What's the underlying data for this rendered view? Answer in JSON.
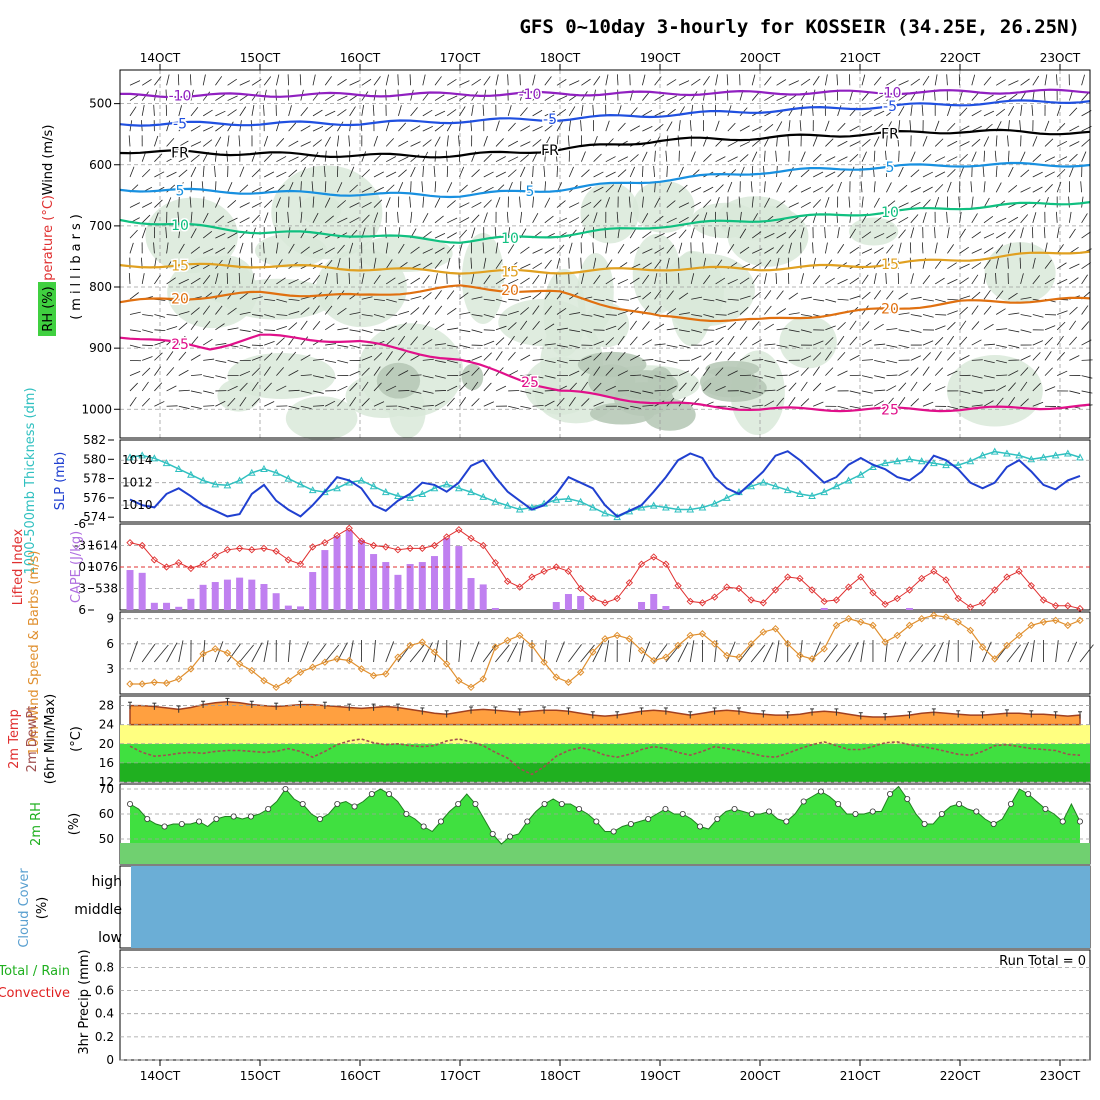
{
  "chart_data": {
    "type": "meteogram",
    "title": "GFS 0~10day 3-hourly for KOSSEIR (34.25E, 26.25N)",
    "dates": [
      "14OCT",
      "15OCT",
      "16OCT",
      "17OCT",
      "18OCT",
      "19OCT",
      "20OCT",
      "21OCT",
      "22OCT",
      "23OCT"
    ],
    "time_range_days": [
      13.6,
      23.3
    ],
    "colors": {
      "grid": "#9e9e9e",
      "rh_fill": "#d9e9d9",
      "precip": "#00e000",
      "convective": "#e02020",
      "cloud": "#6baed6",
      "cape": "#c080f0",
      "li": "#e03030",
      "slp": "#2040d0",
      "thick": "#30c0c0",
      "wind": "#e09030",
      "temp_fill": "#ffa040",
      "dew": "#a05050",
      "rh2m": "#40e040"
    },
    "upper": {
      "ylabel_wind": "Wind (m/s)",
      "ylabel_temp": "Temperature (°C)",
      "ylabel_rh": "RH (%)",
      "ylabel_units": "(millibars)",
      "y_ticks": [
        500,
        600,
        700,
        800,
        900,
        1000
      ],
      "ylim_hpa": [
        445,
        1047
      ],
      "isotherms": [
        {
          "label": "-10",
          "color": "#9020c0",
          "base": 488,
          "amp": 4,
          "t": [
            13.6,
            23.3
          ],
          "p": [
            487,
            480
          ]
        },
        {
          "label": "-5",
          "color": "#2050e0",
          "base": 533,
          "t": [
            13.6,
            16,
            18,
            20,
            22,
            23.3
          ],
          "p": [
            533,
            532,
            525,
            512,
            500,
            495
          ]
        },
        {
          "label": "FR",
          "color": "#000000",
          "t": [
            13.6,
            15,
            16,
            17,
            18,
            19,
            20,
            21,
            22,
            23.3
          ],
          "p": [
            578,
            582,
            585,
            585,
            575,
            560,
            556,
            550,
            545,
            548
          ]
        },
        {
          "label": "5",
          "color": "#1890e0",
          "t": [
            13.6,
            15,
            16,
            17,
            18,
            19,
            20,
            21,
            22,
            23.3
          ],
          "p": [
            640,
            645,
            648,
            650,
            640,
            625,
            612,
            605,
            600,
            600
          ]
        },
        {
          "label": "10",
          "color": "#10c080",
          "t": [
            13.6,
            15,
            16,
            17,
            18,
            19,
            20,
            21,
            22,
            23.3
          ],
          "p": [
            690,
            710,
            715,
            725,
            715,
            700,
            690,
            680,
            670,
            660
          ]
        },
        {
          "label": "15",
          "color": "#e0a020",
          "t": [
            13.6,
            15,
            16,
            17,
            18,
            19,
            20,
            21,
            22,
            23.3
          ],
          "p": [
            765,
            765,
            770,
            775,
            775,
            770,
            770,
            765,
            755,
            740
          ]
        },
        {
          "label": "20",
          "color": "#e07010",
          "t": [
            13.6,
            15,
            16,
            17,
            18,
            19,
            20,
            21,
            22,
            23.3
          ],
          "p": [
            825,
            810,
            815,
            800,
            810,
            850,
            855,
            840,
            825,
            820
          ]
        },
        {
          "label": "25",
          "color": "#e0108a",
          "t": [
            13.6,
            14.5,
            15,
            16,
            17,
            18,
            19,
            20,
            21,
            22,
            23.3
          ],
          "p": [
            880,
            900,
            880,
            890,
            920,
            970,
            990,
            1000,
            1000,
            1000,
            995
          ]
        }
      ]
    },
    "pressure": {
      "ylabel_slp": "SLP (mb)",
      "ylabel_thick": "1000-500mb Thickness (dm)",
      "thick_ticks": [
        574,
        576,
        578,
        580,
        582
      ],
      "slp_ticks": [
        1010,
        1012,
        1014
      ],
      "slp_ylim": [
        1008.5,
        1015.8
      ],
      "thick_ylim": [
        573.5,
        582
      ],
      "slp": [
        1010.5,
        1010.0,
        1009.8,
        1011.0,
        1011.5,
        1010.8,
        1010.0,
        1009.5,
        1009.0,
        1009.2,
        1011.0,
        1011.8,
        1010.4,
        1009.6,
        1009.0,
        1010.0,
        1011.2,
        1012.5,
        1012.2,
        1011.5,
        1010.0,
        1009.5,
        1010.4,
        1011.0,
        1012.0,
        1011.8,
        1011.2,
        1012.0,
        1013.5,
        1014.0,
        1012.5,
        1011.2,
        1010.4,
        1009.6,
        1010.0,
        1011.0,
        1012.5,
        1012.0,
        1011.5,
        1010.0,
        1009.0,
        1009.5,
        1010.0,
        1011.2,
        1012.5,
        1014.0,
        1014.6,
        1014.2,
        1012.5,
        1011.5,
        1011.0,
        1012.0,
        1013.0,
        1014.4,
        1014.8,
        1014.0,
        1013.0,
        1012.0,
        1012.5,
        1013.6,
        1014.2,
        1013.6,
        1013.2,
        1012.5,
        1012.2,
        1013.0,
        1014.4,
        1014.0,
        1013.2,
        1012.0,
        1011.5,
        1012.0,
        1013.4,
        1014.0,
        1013.0,
        1011.8,
        1011.4,
        1012.2,
        1012.6
      ],
      "thick": [
        580.2,
        580.4,
        580.1,
        579.6,
        579.0,
        578.4,
        577.8,
        577.4,
        577.3,
        577.8,
        578.6,
        579.0,
        578.6,
        578.0,
        577.4,
        576.8,
        576.6,
        577.0,
        577.6,
        577.8,
        577.2,
        576.6,
        576.2,
        576.0,
        576.4,
        577.0,
        577.4,
        577.0,
        576.6,
        576.1,
        575.6,
        575.2,
        574.8,
        575.0,
        575.4,
        575.8,
        575.9,
        575.6,
        575.0,
        574.4,
        574.0,
        574.6,
        575.0,
        575.2,
        575.0,
        574.8,
        574.8,
        575.0,
        575.4,
        576.0,
        576.6,
        577.2,
        577.6,
        577.2,
        576.8,
        576.4,
        576.2,
        576.6,
        577.2,
        577.8,
        578.4,
        579.2,
        579.6,
        579.8,
        580.0,
        579.8,
        579.6,
        579.4,
        579.4,
        579.8,
        580.4,
        580.8,
        580.6,
        580.4,
        580.0,
        580.2,
        580.4,
        580.6,
        580.2
      ]
    },
    "instability": {
      "ylabel_li": "Lifted Index",
      "ylabel_cape": "CAPE (J/kg)",
      "li_ticks": [
        "-6",
        "-3",
        "0",
        "3",
        "6"
      ],
      "cape_ticks": [
        538,
        1076,
        1614
      ],
      "li_ylim": [
        -6,
        6
      ],
      "cape_ylim": [
        0,
        2152
      ],
      "li": [
        -3.4,
        -3.0,
        -1.0,
        0.0,
        -0.6,
        0.2,
        -0.4,
        -1.6,
        -2.4,
        -2.6,
        -2.4,
        -2.6,
        -2.2,
        -1.0,
        -0.4,
        -2.8,
        -3.4,
        -4.4,
        -5.4,
        -3.6,
        -3.0,
        -2.8,
        -2.4,
        -2.6,
        -2.6,
        -3.0,
        -4.2,
        -5.2,
        -4.0,
        -3.0,
        -0.6,
        2.0,
        2.8,
        1.4,
        0.6,
        0.0,
        0.6,
        3.0,
        4.4,
        5.0,
        4.4,
        2.2,
        -0.4,
        -1.4,
        -0.4,
        2.6,
        4.8,
        5.0,
        4.2,
        2.8,
        3.0,
        4.6,
        5.0,
        3.2,
        1.4,
        1.6,
        3.2,
        4.8,
        4.6,
        2.8,
        1.4,
        3.6,
        5.2,
        4.4,
        3.2,
        1.6,
        0.6,
        1.8,
        4.4,
        5.6,
        5.0,
        3.2,
        1.4,
        0.6,
        2.6,
        4.6,
        5.4,
        5.4,
        5.8
      ],
      "cape": [
        1000,
        930,
        180,
        180,
        80,
        280,
        630,
        700,
        760,
        810,
        760,
        650,
        420,
        110,
        90,
        950,
        1500,
        1850,
        2000,
        1750,
        1400,
        1200,
        880,
        1150,
        1200,
        1350,
        1800,
        1600,
        800,
        640,
        50,
        0,
        0,
        0,
        0,
        200,
        400,
        350,
        0,
        0,
        0,
        0,
        200,
        400,
        100,
        0,
        0,
        0,
        0,
        0,
        0,
        0,
        0,
        0,
        0,
        0,
        0,
        50,
        0,
        0,
        0,
        0,
        0,
        0,
        50,
        0,
        0,
        0,
        0,
        0,
        0,
        0,
        0,
        0,
        0,
        0,
        0,
        0,
        0
      ]
    },
    "wind10m": {
      "ylabel": "10m Wind Speed & Barbs (m/s)",
      "y_ticks": [
        3,
        6,
        9
      ],
      "ylim": [
        0,
        9.8
      ],
      "speed": [
        1.2,
        1.2,
        1.4,
        1.3,
        1.8,
        3.0,
        4.8,
        5.4,
        4.9,
        3.6,
        2.8,
        1.6,
        0.8,
        1.6,
        2.6,
        3.2,
        3.8,
        4.2,
        4.0,
        3.0,
        2.2,
        2.4,
        4.4,
        5.8,
        6.2,
        5.0,
        3.6,
        1.6,
        0.8,
        1.8,
        5.6,
        6.4,
        7.0,
        5.8,
        3.8,
        2.0,
        1.4,
        2.6,
        5.0,
        6.6,
        7.0,
        6.6,
        5.2,
        4.0,
        4.4,
        5.8,
        7.0,
        7.2,
        6.0,
        4.6,
        4.4,
        6.0,
        7.4,
        7.8,
        6.0,
        4.6,
        4.2,
        5.4,
        8.2,
        9.0,
        8.6,
        8.2,
        6.2,
        7.0,
        8.2,
        9.0,
        9.4,
        9.2,
        8.6,
        7.6,
        5.6,
        4.2,
        5.8,
        7.0,
        8.2,
        8.6,
        8.8,
        8.2,
        8.8
      ]
    },
    "temp2m": {
      "ylabel_temp": "2m Temp",
      "ylabel_dew": "2m DewPt",
      "ylabel_minmax": "(6hr Min/Max)",
      "units": "(°C)",
      "y_ticks": [
        12,
        16,
        20,
        24,
        28
      ],
      "ylim": [
        12,
        30
      ],
      "temp": [
        28,
        28,
        27.8,
        27.5,
        27.2,
        27.6,
        28.2,
        28.6,
        28.8,
        28.6,
        28.2,
        28.0,
        27.8,
        28.0,
        28.2,
        28.2,
        28.0,
        27.8,
        27.6,
        27.4,
        27.6,
        27.8,
        27.6,
        27.2,
        26.8,
        26.4,
        26.2,
        26.6,
        27.0,
        27.2,
        27.0,
        26.8,
        26.6,
        26.8,
        27.0,
        27.0,
        26.8,
        26.4,
        26.0,
        25.8,
        26.0,
        26.4,
        26.8,
        27.0,
        26.8,
        26.4,
        26.0,
        26.4,
        26.8,
        27.0,
        26.8,
        26.4,
        26.2,
        26.0,
        26.0,
        26.2,
        26.6,
        26.8,
        26.6,
        26.2,
        25.8,
        25.6,
        25.6,
        25.8,
        26.0,
        26.4,
        26.6,
        26.4,
        26.2,
        26.0,
        26.0,
        26.2,
        26.4,
        26.4,
        26.2,
        26.2,
        26.0,
        25.8,
        26.0
      ],
      "dew": [
        19.5,
        18.2,
        17.4,
        17.6,
        18.0,
        18.2,
        18.0,
        18.4,
        18.6,
        18.6,
        18.4,
        18.2,
        18.4,
        19.0,
        18.4,
        17.2,
        18.4,
        19.8,
        20.6,
        21.0,
        20.2,
        19.8,
        20.0,
        19.6,
        19.4,
        19.6,
        20.6,
        21.0,
        20.4,
        19.6,
        18.2,
        17.0,
        14.8,
        13.6,
        15.2,
        17.4,
        18.6,
        19.2,
        18.6,
        17.6,
        17.2,
        17.8,
        18.8,
        19.4,
        19.0,
        18.2,
        17.6,
        18.4,
        19.4,
        19.0,
        18.6,
        18.0,
        17.4,
        17.2,
        18.0,
        19.0,
        19.8,
        20.4,
        19.6,
        18.8,
        18.8,
        19.4,
        20.2,
        20.4,
        19.8,
        19.4,
        19.0,
        18.4,
        17.8,
        17.6,
        18.4,
        19.6,
        19.8,
        19.4,
        19.0,
        18.8,
        18.6,
        17.8,
        17.6
      ]
    },
    "rh2m": {
      "ylabel": "2m RH",
      "units": "(%)",
      "y_ticks": [
        50,
        60,
        70
      ],
      "ylim": [
        40,
        72
      ],
      "values": [
        64,
        62,
        58,
        56,
        55,
        56,
        56,
        56,
        57,
        55,
        58,
        59,
        59,
        58,
        59,
        60,
        62,
        65,
        70,
        66,
        64,
        60,
        58,
        60,
        64,
        65,
        63,
        65,
        68,
        70,
        68,
        65,
        60,
        58,
        55,
        53,
        57,
        61,
        64,
        68,
        64,
        58,
        52,
        48,
        51,
        52,
        57,
        61,
        64,
        66,
        64,
        64,
        62,
        60,
        57,
        53,
        53,
        55,
        56,
        57,
        58,
        60,
        62,
        60,
        60,
        58,
        55,
        54,
        58,
        61,
        62,
        61,
        60,
        60,
        61,
        58,
        57,
        60,
        65,
        67,
        69,
        67,
        64,
        60,
        60,
        60,
        61,
        61,
        68,
        71,
        66,
        60,
        56,
        56,
        60,
        63,
        64,
        62,
        61,
        58,
        56,
        58,
        64,
        70,
        68,
        65,
        62,
        60,
        57,
        64,
        57
      ]
    },
    "cloud": {
      "ylabel": "Cloud Cover",
      "units": "(%)",
      "levels": [
        "high",
        "middle",
        "low"
      ]
    },
    "precip": {
      "ylabel_total": "Total / Rain",
      "ylabel_conv": "Convective",
      "ylabel_axis": "3hr Precip (mm)",
      "y_ticks": [
        "0",
        "0.2",
        "0.4",
        "0.6",
        "0.8"
      ],
      "ylim": [
        0,
        0.95
      ],
      "run_total": "Run Total = 0"
    }
  }
}
